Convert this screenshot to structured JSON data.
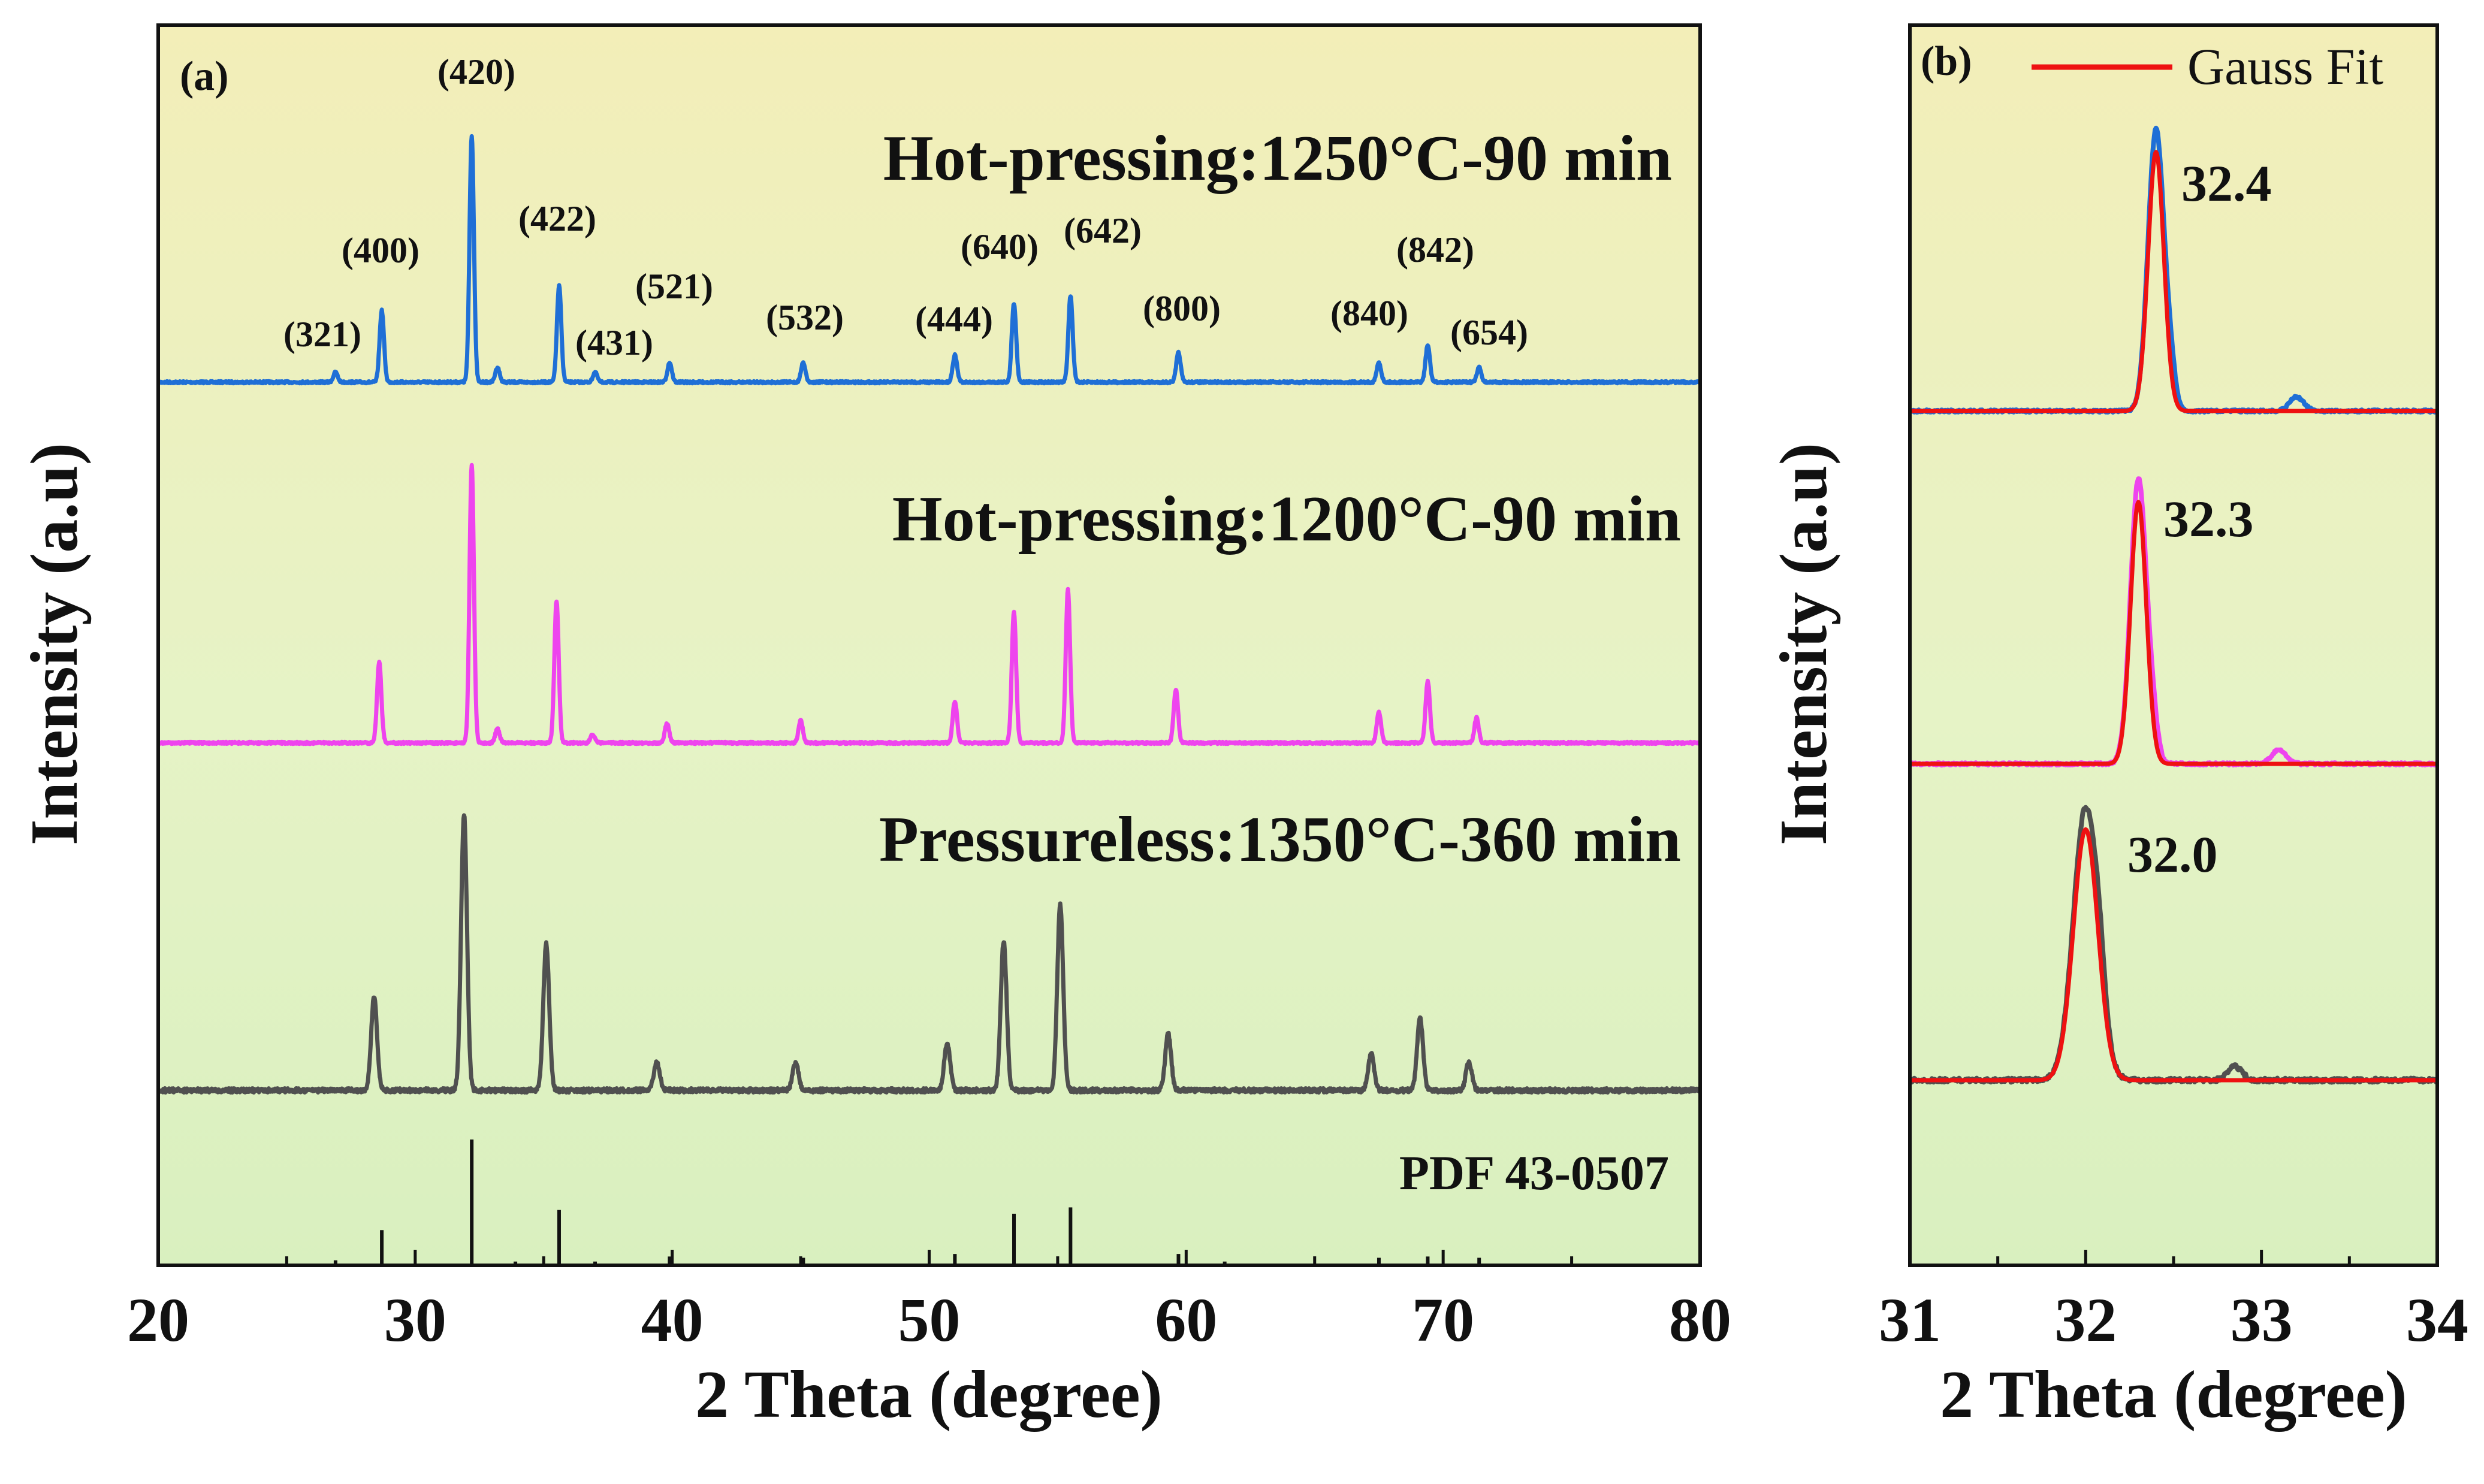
{
  "chart_data": [
    {
      "panel": "(a)",
      "type": "line",
      "xlabel": "2 Theta (degree)",
      "ylabel": "Intensity (a.u)",
      "xlim": [
        20,
        80
      ],
      "xticks": [
        "20",
        "30",
        "40",
        "50",
        "60",
        "70",
        "80"
      ],
      "series": [
        {
          "name": "Hot-pressing:1250°C-90 min",
          "color": "#1f6fd6",
          "peaks": [
            {
              "hkl": "(321)",
              "x": 26.9,
              "h": 0.04
            },
            {
              "hkl": "(400)",
              "x": 28.7,
              "h": 0.29
            },
            {
              "hkl": "(420)",
              "x": 32.2,
              "h": 1.0
            },
            {
              "hkl": "",
              "x": 33.2,
              "h": 0.06
            },
            {
              "hkl": "(422)",
              "x": 35.6,
              "h": 0.39
            },
            {
              "hkl": "(431)",
              "x": 37.0,
              "h": 0.04
            },
            {
              "hkl": "(521)",
              "x": 39.9,
              "h": 0.08
            },
            {
              "hkl": "(532)",
              "x": 45.1,
              "h": 0.08
            },
            {
              "hkl": "(444)",
              "x": 51.0,
              "h": 0.11
            },
            {
              "hkl": "(640)",
              "x": 53.3,
              "h": 0.32
            },
            {
              "hkl": "(642)",
              "x": 55.5,
              "h": 0.35
            },
            {
              "hkl": "(800)",
              "x": 59.7,
              "h": 0.12
            },
            {
              "hkl": "(840)",
              "x": 67.5,
              "h": 0.08
            },
            {
              "hkl": "(842)",
              "x": 69.4,
              "h": 0.15
            },
            {
              "hkl": "(654)",
              "x": 71.4,
              "h": 0.06
            }
          ]
        },
        {
          "name": "Hot-pressing:1200°C-90 min",
          "color": "#ee44ee",
          "peaks": [
            {
              "x": 28.6,
              "h": 0.29
            },
            {
              "x": 32.2,
              "h": 1.0
            },
            {
              "x": 33.2,
              "h": 0.05
            },
            {
              "x": 35.5,
              "h": 0.51
            },
            {
              "x": 36.9,
              "h": 0.03
            },
            {
              "x": 39.8,
              "h": 0.07
            },
            {
              "x": 45.0,
              "h": 0.08
            },
            {
              "x": 51.0,
              "h": 0.15
            },
            {
              "x": 53.3,
              "h": 0.47
            },
            {
              "x": 55.4,
              "h": 0.55
            },
            {
              "x": 59.6,
              "h": 0.19
            },
            {
              "x": 67.5,
              "h": 0.11
            },
            {
              "x": 69.4,
              "h": 0.22
            },
            {
              "x": 71.3,
              "h": 0.09
            }
          ]
        },
        {
          "name": "Pressureless:1350°C-360 min",
          "color": "#505050",
          "peaks": [
            {
              "x": 28.4,
              "h": 0.33
            },
            {
              "x": 31.9,
              "h": 0.98
            },
            {
              "x": 35.1,
              "h": 0.52
            },
            {
              "x": 39.4,
              "h": 0.1
            },
            {
              "x": 44.8,
              "h": 0.1
            },
            {
              "x": 50.7,
              "h": 0.17
            },
            {
              "x": 52.9,
              "h": 0.53
            },
            {
              "x": 55.1,
              "h": 0.66
            },
            {
              "x": 59.3,
              "h": 0.2
            },
            {
              "x": 67.2,
              "h": 0.13
            },
            {
              "x": 69.1,
              "h": 0.26
            },
            {
              "x": 71.0,
              "h": 0.1
            }
          ]
        }
      ],
      "reference": {
        "name": "PDF 43-0507",
        "lines": [
          {
            "x": 26.9,
            "h": 0.04
          },
          {
            "x": 28.7,
            "h": 0.28
          },
          {
            "x": 32.2,
            "h": 1.0
          },
          {
            "x": 33.9,
            "h": 0.03
          },
          {
            "x": 35.6,
            "h": 0.44
          },
          {
            "x": 37.0,
            "h": 0.03
          },
          {
            "x": 39.9,
            "h": 0.07
          },
          {
            "x": 45.1,
            "h": 0.06
          },
          {
            "x": 51.0,
            "h": 0.09
          },
          {
            "x": 53.3,
            "h": 0.41
          },
          {
            "x": 55.5,
            "h": 0.46
          },
          {
            "x": 59.7,
            "h": 0.09
          },
          {
            "x": 61.5,
            "h": 0.03
          },
          {
            "x": 67.5,
            "h": 0.06
          },
          {
            "x": 69.4,
            "h": 0.07
          },
          {
            "x": 71.4,
            "h": 0.06
          }
        ]
      }
    },
    {
      "panel": "(b)",
      "type": "line",
      "xlabel": "2 Theta (degree)",
      "ylabel": "Intensity (a.u)",
      "xlim": [
        31,
        34
      ],
      "xticks": [
        "31",
        "32",
        "33",
        "34"
      ],
      "legend": {
        "label": "Gauss Fit",
        "color": "#ee1111",
        "position": "top-right"
      },
      "series": [
        {
          "name": "Hot-pressing:1250°C-90 min",
          "color": "#1f6fd6",
          "center": 32.4,
          "peak_label": "32.4",
          "h": 1.0,
          "small_peak": 33.2
        },
        {
          "name": "Hot-pressing:1200°C-90 min",
          "color": "#ee44ee",
          "center": 32.3,
          "peak_label": "32.3",
          "h": 1.0,
          "small_peak": 33.1
        },
        {
          "name": "Pressureless:1350°C-360 min",
          "color": "#505050",
          "center": 32.0,
          "peak_label": "32.0",
          "h": 1.0,
          "small_peak": 32.85
        }
      ]
    }
  ]
}
